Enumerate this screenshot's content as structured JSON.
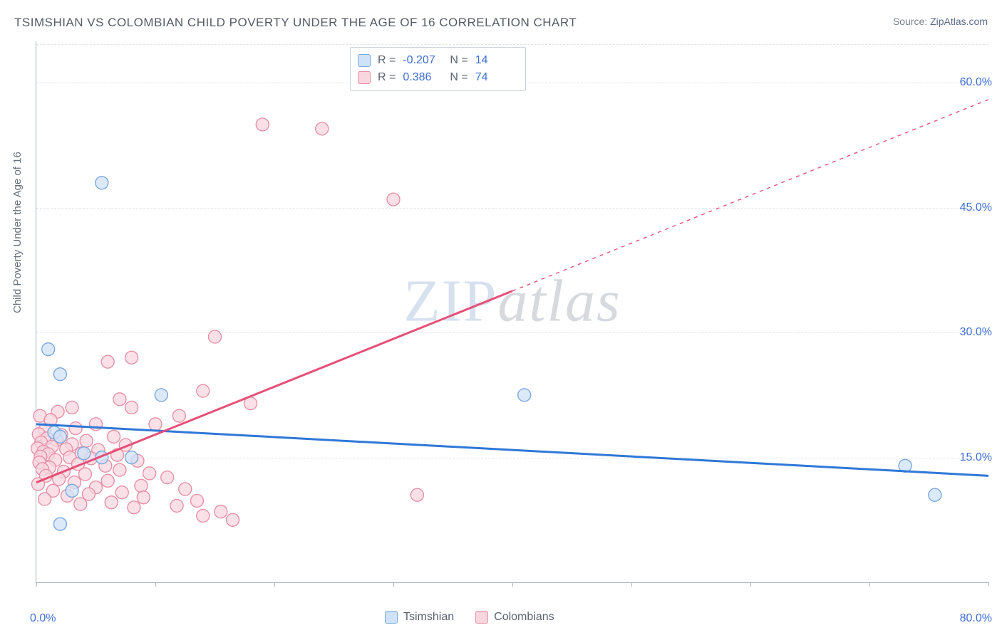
{
  "title": "TSIMSHIAN VS COLOMBIAN CHILD POVERTY UNDER THE AGE OF 16 CORRELATION CHART",
  "source_label": "Source:",
  "source_name": "ZipAtlas.com",
  "ylabel": "Child Poverty Under the Age of 16",
  "watermark_a": "ZIP",
  "watermark_b": "atlas",
  "chart": {
    "type": "scatter-correlation",
    "xlim": [
      0,
      80
    ],
    "ylim": [
      0,
      65
    ],
    "x_ticks": [
      0,
      10,
      20,
      30,
      40,
      50,
      60,
      70,
      80
    ],
    "x_tick_labels_shown": {
      "0": "0.0%",
      "80": "80.0%"
    },
    "y_gridlines": [
      15,
      30,
      45,
      60
    ],
    "y_tick_labels": {
      "15": "15.0%",
      "30": "30.0%",
      "45": "45.0%",
      "60": "60.0%"
    },
    "background_color": "#ffffff",
    "grid_color": "#dfe3e8",
    "axis_color": "#aab3bf",
    "label_color": "#3d6fd6",
    "marker_radius": 9,
    "marker_stroke_width": 1.4,
    "series": [
      {
        "name": "Tsimshian",
        "fill": "#cfe2f7",
        "stroke": "#7aa8e0",
        "line_color": "#2f78d8",
        "R": "-0.207",
        "N": "14",
        "points": [
          [
            5.5,
            48
          ],
          [
            1,
            28
          ],
          [
            2,
            25
          ],
          [
            10.5,
            22.5
          ],
          [
            1.5,
            18
          ],
          [
            2,
            17.5
          ],
          [
            4,
            15.5
          ],
          [
            5.5,
            15
          ],
          [
            8,
            15
          ],
          [
            3,
            11
          ],
          [
            2,
            7
          ],
          [
            41,
            22.5
          ],
          [
            73,
            14
          ],
          [
            75.5,
            10.5
          ]
        ],
        "trend": {
          "x1": 0,
          "y1": 19,
          "x2": 80,
          "y2": 12.8,
          "dash": false
        }
      },
      {
        "name": "Colombians",
        "fill": "#f9d6df",
        "stroke": "#e890a6",
        "line_color": "#e54f77",
        "R": "0.386",
        "N": "74",
        "points": [
          [
            19,
            55
          ],
          [
            24,
            54.5
          ],
          [
            30,
            46
          ],
          [
            15,
            29.5
          ],
          [
            8,
            27
          ],
          [
            6,
            26.5
          ],
          [
            14,
            23
          ],
          [
            7,
            22
          ],
          [
            18,
            21.5
          ],
          [
            8,
            21
          ],
          [
            3,
            21
          ],
          [
            1.8,
            20.5
          ],
          [
            0.3,
            20
          ],
          [
            1.2,
            19.5
          ],
          [
            5,
            19
          ],
          [
            10,
            19
          ],
          [
            3.3,
            18.5
          ],
          [
            0.7,
            18.3
          ],
          [
            0.2,
            17.8
          ],
          [
            2.1,
            17.7
          ],
          [
            6.5,
            17.5
          ],
          [
            0.9,
            17.3
          ],
          [
            1.7,
            17.1
          ],
          [
            4.2,
            17
          ],
          [
            0.4,
            16.8
          ],
          [
            3,
            16.6
          ],
          [
            7.5,
            16.5
          ],
          [
            1.3,
            16.3
          ],
          [
            0.1,
            16.1
          ],
          [
            2.5,
            16
          ],
          [
            5.2,
            15.9
          ],
          [
            0.6,
            15.7
          ],
          [
            3.8,
            15.5
          ],
          [
            1,
            15.4
          ],
          [
            6.8,
            15.3
          ],
          [
            0.35,
            15.1
          ],
          [
            2.8,
            15
          ],
          [
            4.6,
            14.9
          ],
          [
            1.6,
            14.7
          ],
          [
            8.5,
            14.6
          ],
          [
            0.25,
            14.4
          ],
          [
            3.5,
            14.2
          ],
          [
            5.8,
            14
          ],
          [
            1.1,
            13.8
          ],
          [
            0.5,
            13.6
          ],
          [
            7,
            13.5
          ],
          [
            2.3,
            13.3
          ],
          [
            9.5,
            13.1
          ],
          [
            4.1,
            13
          ],
          [
            0.8,
            12.8
          ],
          [
            11,
            12.6
          ],
          [
            1.9,
            12.4
          ],
          [
            6,
            12.2
          ],
          [
            3.2,
            12
          ],
          [
            0.15,
            11.8
          ],
          [
            8.8,
            11.6
          ],
          [
            5,
            11.4
          ],
          [
            12.5,
            11.2
          ],
          [
            1.4,
            11
          ],
          [
            7.2,
            10.8
          ],
          [
            4.4,
            10.6
          ],
          [
            2.6,
            10.4
          ],
          [
            9,
            10.2
          ],
          [
            0.7,
            10
          ],
          [
            13.5,
            9.8
          ],
          [
            6.3,
            9.6
          ],
          [
            3.7,
            9.4
          ],
          [
            11.8,
            9.2
          ],
          [
            8.2,
            9
          ],
          [
            15.5,
            8.5
          ],
          [
            14,
            8
          ],
          [
            16.5,
            7.5
          ],
          [
            32,
            10.5
          ],
          [
            12,
            20
          ]
        ],
        "trend_solid": {
          "x1": 0,
          "y1": 12,
          "x2": 40,
          "y2": 35
        },
        "trend_dash": {
          "x1": 40,
          "y1": 35,
          "x2": 80,
          "y2": 58
        }
      }
    ]
  },
  "legend_top": [
    {
      "sq_fill": "#cfe2f7",
      "sq_stroke": "#7aa8e0",
      "r_label": "R",
      "r_val": "-0.207",
      "n_label": "N",
      "n_val": "14"
    },
    {
      "sq_fill": "#f9d6df",
      "sq_stroke": "#e890a6",
      "r_label": "R",
      "r_val": "0.386",
      "n_label": "N",
      "n_val": "74"
    }
  ],
  "legend_bottom": [
    {
      "sq_fill": "#cfe2f7",
      "sq_stroke": "#7aa8e0",
      "label": "Tsimshian"
    },
    {
      "sq_fill": "#f9d6df",
      "sq_stroke": "#e890a6",
      "label": "Colombians"
    }
  ]
}
